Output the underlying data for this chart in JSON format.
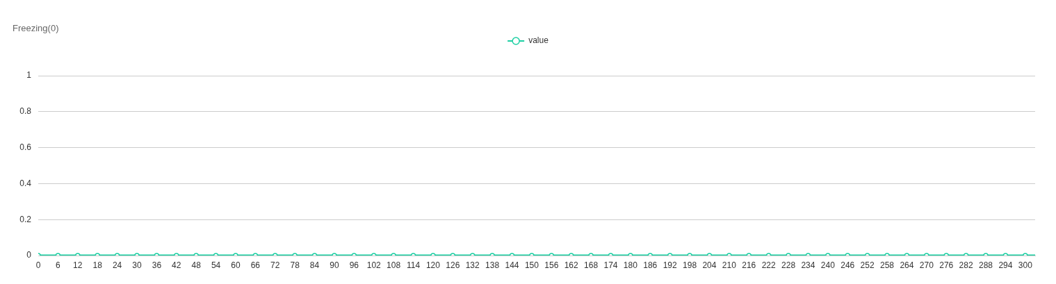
{
  "chart_data": {
    "type": "line",
    "title": "Freezing(0)",
    "x": [
      0,
      6,
      12,
      18,
      24,
      30,
      36,
      42,
      48,
      54,
      60,
      66,
      72,
      78,
      84,
      90,
      96,
      102,
      108,
      114,
      120,
      126,
      132,
      138,
      144,
      150,
      156,
      162,
      168,
      174,
      180,
      186,
      192,
      198,
      204,
      210,
      216,
      222,
      228,
      234,
      240,
      246,
      252,
      258,
      264,
      270,
      276,
      282,
      288,
      294,
      300,
      303
    ],
    "series": [
      {
        "name": "value",
        "color": "#1ccfa3",
        "values": [
          0,
          0,
          0,
          0,
          0,
          0,
          0,
          0,
          0,
          0,
          0,
          0,
          0,
          0,
          0,
          0,
          0,
          0,
          0,
          0,
          0,
          0,
          0,
          0,
          0,
          0,
          0,
          0,
          0,
          0,
          0,
          0,
          0,
          0,
          0,
          0,
          0,
          0,
          0,
          0,
          0,
          0,
          0,
          0,
          0,
          0,
          0,
          0,
          0,
          0,
          0,
          0
        ]
      }
    ],
    "xlim": [
      0,
      303
    ],
    "xticks": [
      0,
      6,
      12,
      18,
      24,
      30,
      36,
      42,
      48,
      54,
      60,
      66,
      72,
      78,
      84,
      90,
      96,
      102,
      108,
      114,
      120,
      126,
      132,
      138,
      144,
      150,
      156,
      162,
      168,
      174,
      180,
      186,
      192,
      198,
      204,
      210,
      216,
      222,
      228,
      234,
      240,
      246,
      252,
      258,
      264,
      270,
      276,
      282,
      288,
      294,
      300
    ],
    "ylim": [
      0,
      1
    ],
    "yticks": [
      0,
      0.2,
      0.4,
      0.6,
      0.8,
      1
    ],
    "grid": "y",
    "legend": "top",
    "marker": "circle"
  }
}
